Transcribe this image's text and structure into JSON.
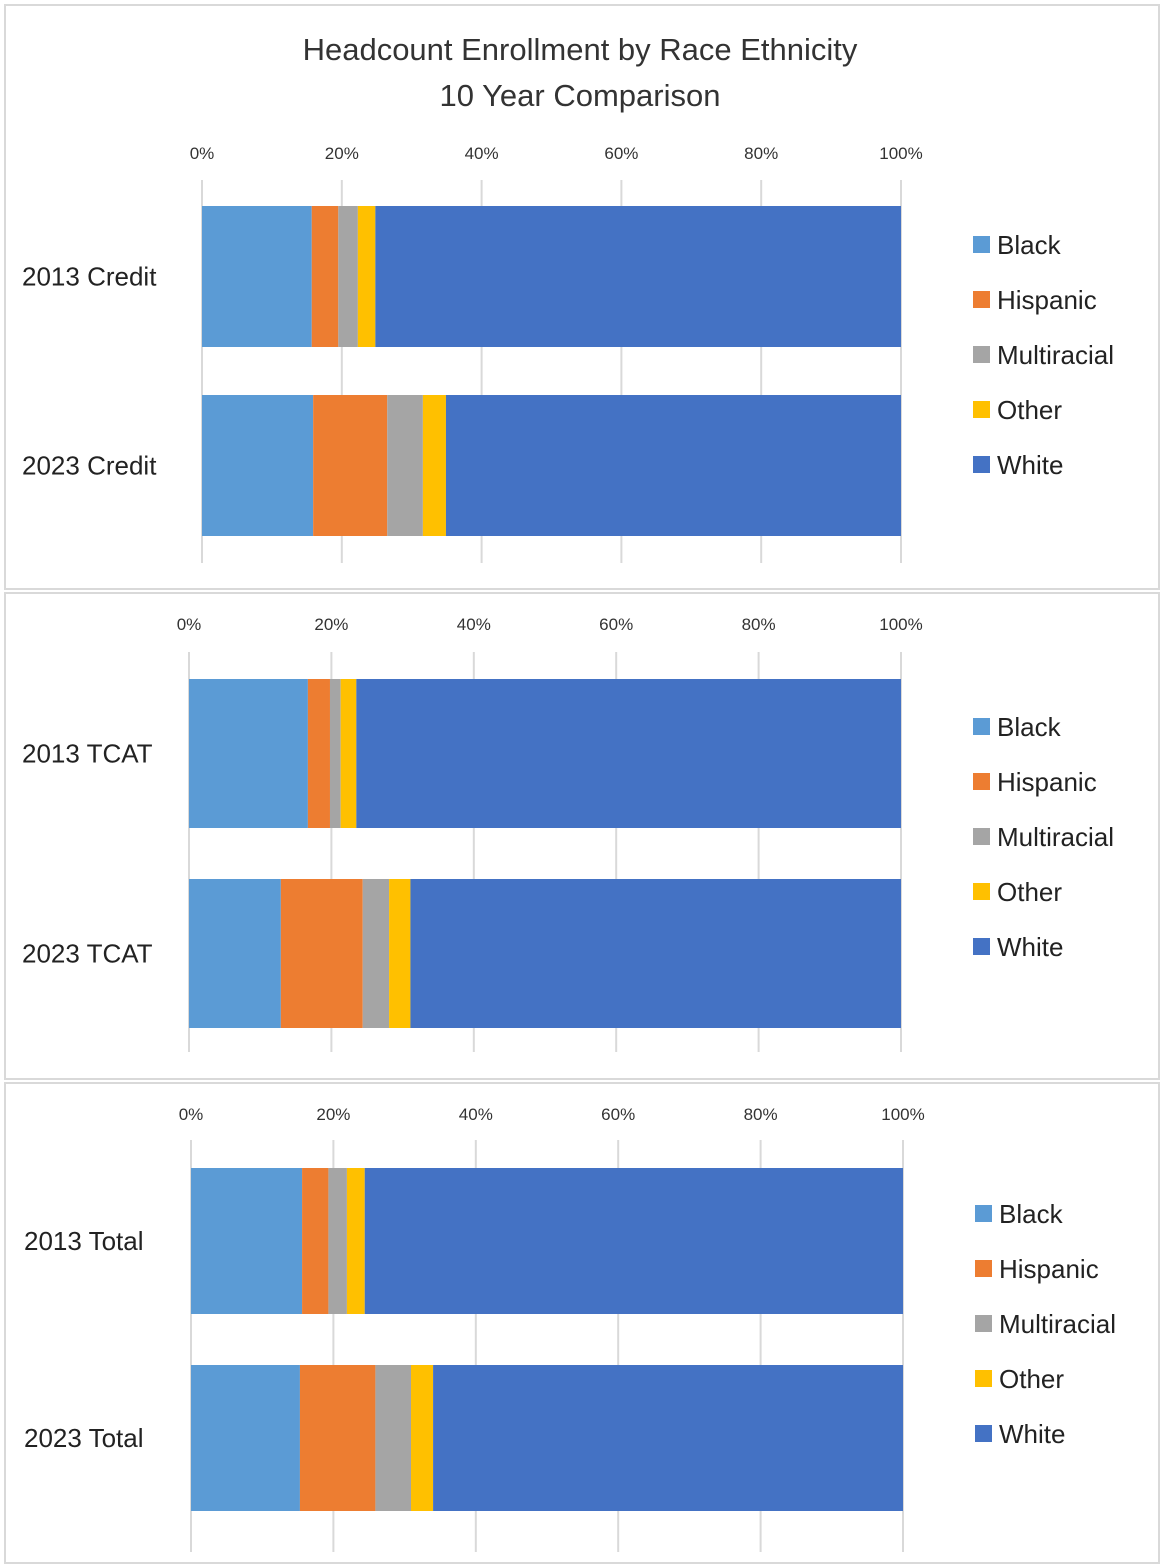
{
  "title_line1": "Headcount Enrollment by Race Ethnicity",
  "title_line2": "10 Year Comparison",
  "colors": {
    "Black": "#5b9bd5",
    "Hispanic": "#ed7d31",
    "Multiracial": "#a5a5a5",
    "Other": "#ffc000",
    "White": "#4472c4",
    "grid": "#d9d9d9",
    "panel_border": "#d9d9d9"
  },
  "chart_data": [
    {
      "type": "bar",
      "orientation": "horizontal",
      "stacking": "percent",
      "categories": [
        "2013 Credit",
        "2023 Credit"
      ],
      "xlim": [
        0,
        100
      ],
      "x_ticks": [
        "0%",
        "20%",
        "40%",
        "60%",
        "80%",
        "100%"
      ],
      "x_axis_position": "top",
      "grid": true,
      "legend_position": "right",
      "series": [
        {
          "name": "Black",
          "values": [
            15.7,
            15.9
          ]
        },
        {
          "name": "Hispanic",
          "values": [
            3.8,
            10.6
          ]
        },
        {
          "name": "Multiracial",
          "values": [
            2.8,
            5.1
          ]
        },
        {
          "name": "Other",
          "values": [
            2.5,
            3.3
          ]
        },
        {
          "name": "White",
          "values": [
            75.2,
            65.1
          ]
        }
      ]
    },
    {
      "type": "bar",
      "orientation": "horizontal",
      "stacking": "percent",
      "categories": [
        "2013 TCAT",
        "2023 TCAT"
      ],
      "xlim": [
        0,
        100
      ],
      "x_ticks": [
        "0%",
        "20%",
        "40%",
        "60%",
        "80%",
        "100%"
      ],
      "x_axis_position": "top",
      "grid": true,
      "legend_position": "right",
      "series": [
        {
          "name": "Black",
          "values": [
            16.7,
            12.9
          ]
        },
        {
          "name": "Hispanic",
          "values": [
            3.1,
            11.5
          ]
        },
        {
          "name": "Multiracial",
          "values": [
            1.5,
            3.7
          ]
        },
        {
          "name": "Other",
          "values": [
            2.2,
            3.0
          ]
        },
        {
          "name": "White",
          "values": [
            76.5,
            68.9
          ]
        }
      ]
    },
    {
      "type": "bar",
      "orientation": "horizontal",
      "stacking": "percent",
      "categories": [
        "2013 Total",
        "2023 Total"
      ],
      "xlim": [
        0,
        100
      ],
      "x_ticks": [
        "0%",
        "20%",
        "40%",
        "60%",
        "80%",
        "100%"
      ],
      "x_axis_position": "top",
      "grid": true,
      "legend_position": "right",
      "series": [
        {
          "name": "Black",
          "values": [
            15.6,
            15.3
          ]
        },
        {
          "name": "Hispanic",
          "values": [
            3.7,
            10.6
          ]
        },
        {
          "name": "Multiracial",
          "values": [
            2.6,
            5.0
          ]
        },
        {
          "name": "Other",
          "values": [
            2.5,
            3.1
          ]
        },
        {
          "name": "White",
          "values": [
            75.6,
            66.0
          ]
        }
      ]
    }
  ]
}
